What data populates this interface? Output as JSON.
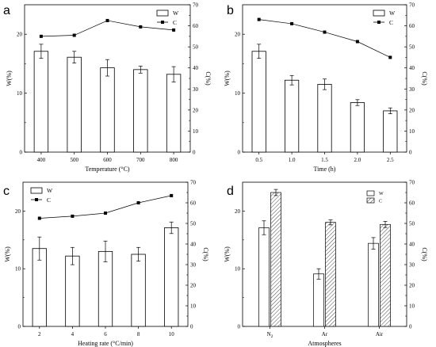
{
  "chart_data": [
    {
      "letter": "a",
      "type": "bar",
      "xlabel": "Temperature (°C)",
      "ylabel_left": "W(%)",
      "ylabel_right": "C(%)",
      "categories": [
        "400",
        "500",
        "600",
        "700",
        "800"
      ],
      "series": [
        {
          "name": "W",
          "kind": "bar",
          "axis": "left",
          "values": [
            17.1,
            16.1,
            14.3,
            14.0,
            13.2
          ],
          "errors": [
            1.2,
            1.0,
            1.4,
            0.6,
            1.3
          ]
        },
        {
          "name": "C",
          "kind": "line",
          "axis": "right",
          "values": [
            55,
            55.5,
            62.5,
            59.5,
            58
          ]
        }
      ],
      "ylim_left": [
        0,
        25
      ],
      "yticks_left": [
        0,
        10,
        20
      ],
      "ylim_right": [
        0,
        70
      ],
      "yticks_right": [
        0,
        10,
        20,
        30,
        40,
        50,
        60,
        70
      ],
      "legend": "top-right"
    },
    {
      "letter": "b",
      "type": "bar",
      "xlabel": "Time (h)",
      "ylabel_left": "W(%)",
      "ylabel_right": "C(%)",
      "categories": [
        "0.5",
        "1.0",
        "1.5",
        "2.0",
        "2.5"
      ],
      "series": [
        {
          "name": "W",
          "kind": "bar",
          "axis": "left",
          "values": [
            17.1,
            12.2,
            11.5,
            8.4,
            7.0
          ],
          "errors": [
            1.2,
            0.8,
            0.9,
            0.5,
            0.5
          ]
        },
        {
          "name": "C",
          "kind": "line",
          "axis": "right",
          "values": [
            63,
            61,
            57,
            52.5,
            45
          ]
        }
      ],
      "ylim_left": [
        0,
        25
      ],
      "yticks_left": [
        0,
        10,
        20
      ],
      "ylim_right": [
        0,
        70
      ],
      "yticks_right": [
        0,
        10,
        20,
        30,
        40,
        50,
        60,
        70
      ],
      "legend": "top-right"
    },
    {
      "letter": "c",
      "type": "bar",
      "xlabel": "Heating rate (°C/min)",
      "ylabel_left": "W(%)",
      "ylabel_right": "C(%)",
      "categories": [
        "2",
        "4",
        "6",
        "8",
        "10"
      ],
      "series": [
        {
          "name": "W",
          "kind": "bar",
          "axis": "left",
          "values": [
            13.5,
            12.2,
            13.0,
            12.5,
            17.1
          ],
          "errors": [
            2.0,
            1.5,
            1.8,
            1.2,
            1.0
          ]
        },
        {
          "name": "C",
          "kind": "line",
          "axis": "right",
          "values": [
            52.5,
            53.5,
            55,
            60,
            63.5
          ]
        }
      ],
      "ylim_left": [
        0,
        25
      ],
      "yticks_left": [
        0,
        10,
        20
      ],
      "ylim_right": [
        0,
        70
      ],
      "yticks_right": [
        0,
        10,
        20,
        30,
        40,
        50,
        60,
        70
      ],
      "legend": "top-left"
    },
    {
      "letter": "d",
      "type": "bar",
      "xlabel": "Atmospheres",
      "ylabel_left": "W(%)",
      "ylabel_right": "C(%)",
      "categories": [
        "N2",
        "Ar",
        "Air"
      ],
      "series": [
        {
          "name": "W",
          "kind": "bar",
          "axis": "left",
          "values": [
            17.1,
            9.1,
            14.4
          ],
          "errors": [
            1.2,
            0.9,
            1.0
          ]
        },
        {
          "name": "C",
          "kind": "hatched-bar",
          "axis": "right",
          "values": [
            65,
            50.5,
            49.5
          ],
          "errors": [
            1.5,
            1.2,
            1.5
          ]
        }
      ],
      "ylim_left": [
        0,
        25
      ],
      "yticks_left": [
        0,
        10,
        20
      ],
      "ylim_right": [
        0,
        70
      ],
      "yticks_right": [
        0,
        10,
        20,
        30,
        40,
        50,
        60,
        70
      ],
      "legend": "top-right"
    }
  ]
}
